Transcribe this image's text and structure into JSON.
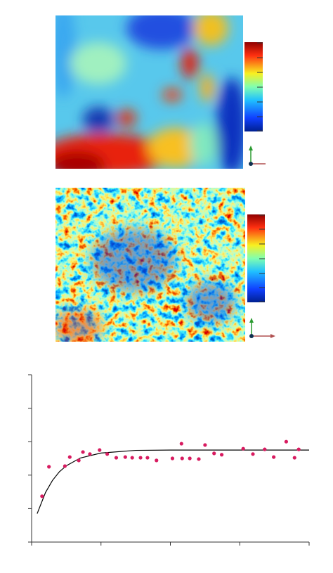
{
  "chart_data": {
    "type": "scatter",
    "x": [
      0.15,
      0.25,
      0.48,
      0.55,
      0.68,
      0.74,
      0.84,
      0.98,
      1.09,
      1.22,
      1.35,
      1.45,
      1.57,
      1.67,
      1.8,
      2.03,
      2.16,
      2.17,
      2.28,
      2.41,
      2.5,
      2.63,
      2.74,
      3.05,
      3.19,
      3.36,
      3.49,
      3.67,
      3.79,
      3.85
    ],
    "series": [
      {
        "color": "#d81b60",
        "values": [
          1.37,
          2.25,
          2.27,
          2.54,
          2.44,
          2.69,
          2.63,
          2.75,
          2.63,
          2.52,
          2.54,
          2.52,
          2.52,
          2.52,
          2.44,
          2.5,
          2.94,
          2.5,
          2.5,
          2.48,
          2.9,
          2.65,
          2.61,
          2.79,
          2.63,
          2.77,
          2.54,
          3.0,
          2.52,
          2.77
        ]
      }
    ],
    "fit": {
      "color": "#000000",
      "x": [
        0.08,
        0.2,
        0.3,
        0.4,
        0.5,
        0.7,
        1.0,
        1.5,
        2.0,
        3.0,
        4.0
      ],
      "values": [
        0.85,
        1.48,
        1.84,
        2.1,
        2.28,
        2.51,
        2.66,
        2.74,
        2.75,
        2.75,
        2.75
      ]
    },
    "xlim": [
      0,
      4
    ],
    "xticks": [
      0,
      1,
      2,
      3,
      4
    ],
    "ylim": [
      0,
      5
    ],
    "yticks": [
      0,
      1,
      2,
      3,
      4,
      5
    ],
    "grid": false
  }
}
